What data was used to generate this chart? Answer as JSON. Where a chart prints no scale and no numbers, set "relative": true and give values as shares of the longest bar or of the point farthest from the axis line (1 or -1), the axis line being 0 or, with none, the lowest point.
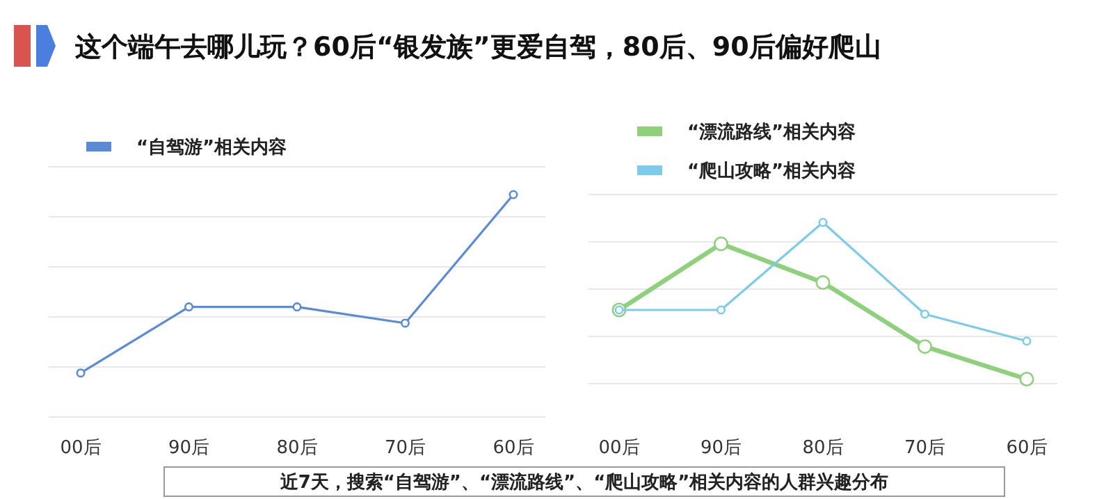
{
  "chart_data": [
    {
      "type": "line",
      "title": "这个端午去哪儿玩？60后“银发族”更爱自驾，80后、90后偏好爬山",
      "relative": true,
      "categories": [
        "00后",
        "90后",
        "80后",
        "70后",
        "60后"
      ],
      "series": [
        {
          "name": "“自驾游”相关内容",
          "color": "#5b8bd6",
          "values": [
            0.198,
            0.495,
            0.495,
            0.422,
            1
          ]
        }
      ],
      "grid": "y",
      "legend": "top left",
      "marker": "circle",
      "annotations": [
        "近7天，搜索“自驾游”、“漂流路线”、“爬山攻略”相关内容的人群兴趣分布"
      ]
    },
    {
      "type": "line",
      "relative": true,
      "categories": [
        "00后",
        "90后",
        "80后",
        "70后",
        "60后"
      ],
      "series": [
        {
          "name": "“漂流路线”相关内容",
          "color": "#8fd07c",
          "values": [
            0.457,
            0.867,
            0.627,
            0.23,
            0.028
          ]
        },
        {
          "name": "“爬山攻略”相关内容",
          "color": "#7ccbe8",
          "values": [
            0.457,
            0.457,
            1,
            0.431,
            0.264
          ]
        }
      ],
      "grid": "y",
      "legend": "top left",
      "marker": "circle"
    }
  ]
}
